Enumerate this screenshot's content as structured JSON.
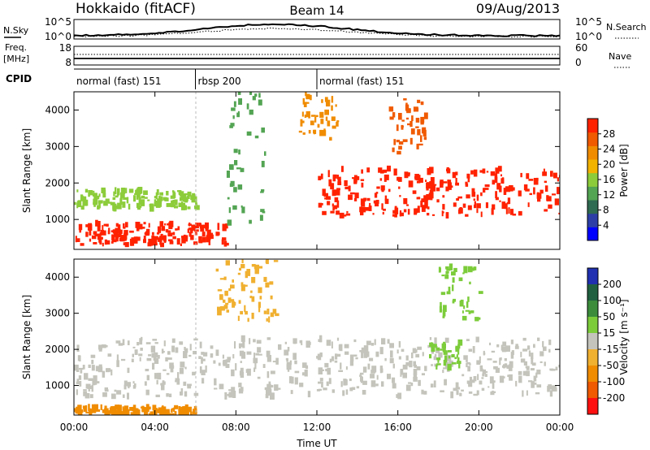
{
  "header": {
    "station": "Hokkaido (fitACF)",
    "beam": "Beam 14",
    "date": "09/Aug/2013"
  },
  "summary_panel": {
    "left_label": "N.Sky",
    "right_label": "N.Search",
    "left_ticks": [
      "10^5",
      "10^0"
    ],
    "right_ticks": [
      "10^5",
      "10^0"
    ]
  },
  "freq_panel": {
    "left_label_line1": "Freq.",
    "left_label_line2": "[MHz]",
    "right_label": "Nave",
    "left_ticks": [
      "18",
      "8"
    ],
    "right_ticks": [
      "60",
      "0"
    ]
  },
  "cpid_panel": {
    "label": "CPID",
    "segments": [
      {
        "name": "normal (fast) 151",
        "start_hour": 0,
        "end_hour": 6
      },
      {
        "name": "rbsp 200",
        "start_hour": 6,
        "end_hour": 12
      },
      {
        "name": "normal (fast) 151",
        "start_hour": 12,
        "end_hour": 24
      }
    ]
  },
  "chart_data": [
    {
      "type": "heatmap",
      "title": "",
      "xlabel": "Time UT",
      "ylabel": "Slant Range [km]",
      "xlim": [
        0,
        24
      ],
      "ylim": [
        180,
        4500
      ],
      "x_ticks": [
        "00:00",
        "04:00",
        "08:00",
        "12:00",
        "16:00",
        "20:00",
        "00:00"
      ],
      "y_ticks": [
        "1000",
        "2000",
        "3000",
        "4000"
      ],
      "colorbar": {
        "label": "Power [dB]",
        "ticks": [
          "28",
          "24",
          "20",
          "16",
          "12",
          "8",
          "4"
        ],
        "levels": [
          {
            "value": 0,
            "color": "#0000ff"
          },
          {
            "value": 4,
            "color": "#2d3fa6"
          },
          {
            "value": 8,
            "color": "#2f6a52"
          },
          {
            "value": 12,
            "color": "#53a453"
          },
          {
            "value": 16,
            "color": "#8ccc3a"
          },
          {
            "value": 18,
            "color": "#f2b200"
          },
          {
            "value": 20,
            "color": "#f08c00"
          },
          {
            "value": 24,
            "color": "#f05a00"
          },
          {
            "value": 28,
            "color": "#ff2200"
          }
        ]
      },
      "features": [
        {
          "start": 0,
          "end": 7.5,
          "range_lo": 300,
          "range_hi": 900,
          "level": 28
        },
        {
          "start": 7.5,
          "end": 9.5,
          "range_lo": 900,
          "range_hi": 4500,
          "level": 12
        },
        {
          "start": 12,
          "end": 24,
          "range_lo": 1100,
          "range_hi": 2400,
          "level": 28
        },
        {
          "start": 11,
          "end": 13,
          "range_lo": 3200,
          "range_hi": 4500,
          "level": 20
        },
        {
          "start": 15.5,
          "end": 17.5,
          "range_lo": 2800,
          "range_hi": 4300,
          "level": 24
        },
        {
          "start": 0,
          "end": 6,
          "range_lo": 1300,
          "range_hi": 1800,
          "level": 16
        }
      ]
    },
    {
      "type": "heatmap",
      "title": "",
      "xlabel": "Time UT",
      "ylabel": "Slant Range [km]",
      "xlim": [
        0,
        24
      ],
      "ylim": [
        180,
        4500
      ],
      "x_ticks": [
        "00:00",
        "04:00",
        "08:00",
        "12:00",
        "16:00",
        "20:00",
        "00:00"
      ],
      "y_ticks": [
        "1000",
        "2000",
        "3000",
        "4000"
      ],
      "colorbar": {
        "label": "Velocity [m s⁻¹]",
        "ticks": [
          "200",
          "100",
          "50",
          "15",
          "-15",
          "-50",
          "-100",
          "-200"
        ],
        "levels": [
          {
            "value": 200,
            "color": "#2030b0"
          },
          {
            "value": 100,
            "color": "#206040"
          },
          {
            "value": 50,
            "color": "#3c8c3c"
          },
          {
            "value": 15,
            "color": "#7ccc3a"
          },
          {
            "value": 0,
            "color": "#c4c4bc"
          },
          {
            "value": -15,
            "color": "#f0b030"
          },
          {
            "value": -50,
            "color": "#f08c00"
          },
          {
            "value": -100,
            "color": "#f05a00"
          },
          {
            "value": -200,
            "color": "#ff1010"
          }
        ]
      },
      "features": [
        {
          "start": 0,
          "end": 24,
          "range_lo": 700,
          "range_hi": 2300,
          "level": 0
        },
        {
          "start": 17.5,
          "end": 19,
          "range_lo": 1500,
          "range_hi": 2200,
          "level": 15
        },
        {
          "start": 18,
          "end": 20,
          "range_lo": 2800,
          "range_hi": 4300,
          "level": 15
        },
        {
          "start": 0,
          "end": 6,
          "range_lo": 200,
          "range_hi": 400,
          "level": -50
        },
        {
          "start": 7,
          "end": 10,
          "range_lo": 2800,
          "range_hi": 4500,
          "level": -15
        }
      ]
    }
  ]
}
